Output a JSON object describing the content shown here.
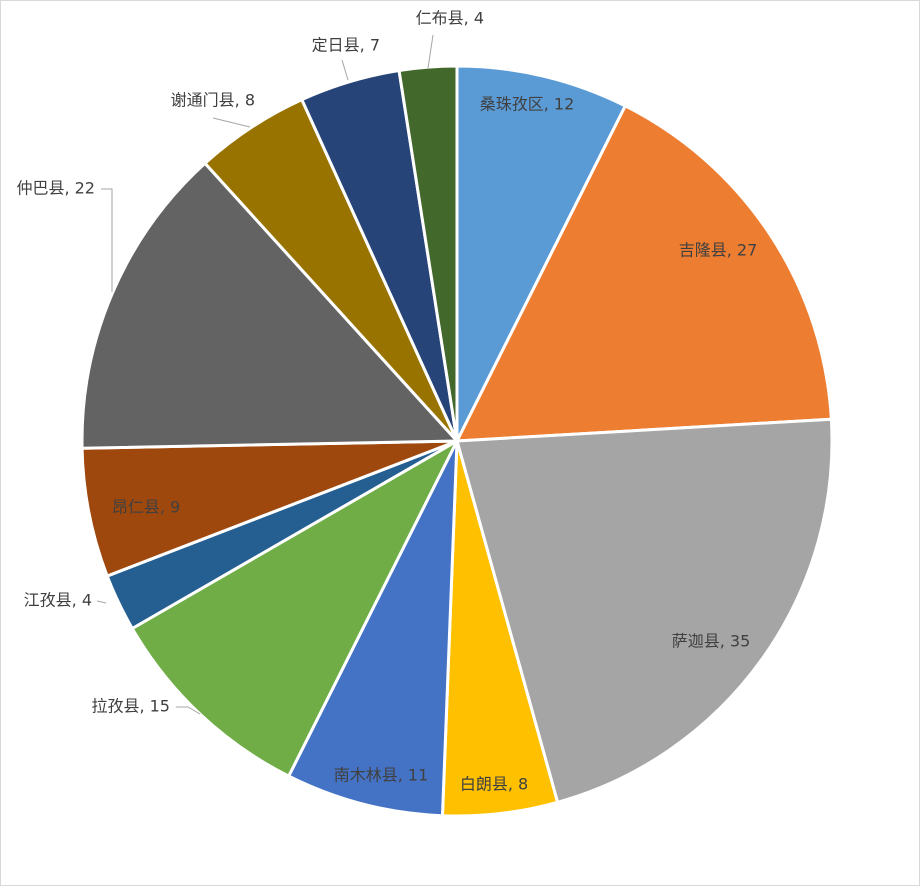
{
  "chart_data": {
    "type": "pie",
    "values": [
      12,
      27,
      35,
      8,
      11,
      15,
      4,
      9,
      22,
      8,
      7,
      4
    ],
    "value_labels": [
      "桑珠孜区, 12",
      "吉隆县, 27",
      "萨迦县, 35",
      "白朗县, 8",
      "南木林县, 11",
      "拉孜县, 15",
      "江孜县, 4",
      "昂仁县, 9",
      "仲巴县, 22",
      "谢通门县, 8",
      "定日县, 7",
      "仁布县, 4"
    ],
    "colors": [
      "#5b9bd5",
      "#ed7d31",
      "#a5a5a5",
      "#ffc000",
      "#4472c4",
      "#70ad47",
      "#255e91",
      "#9e480e",
      "#636363",
      "#997300",
      "#264478",
      "#43682b"
    ]
  }
}
